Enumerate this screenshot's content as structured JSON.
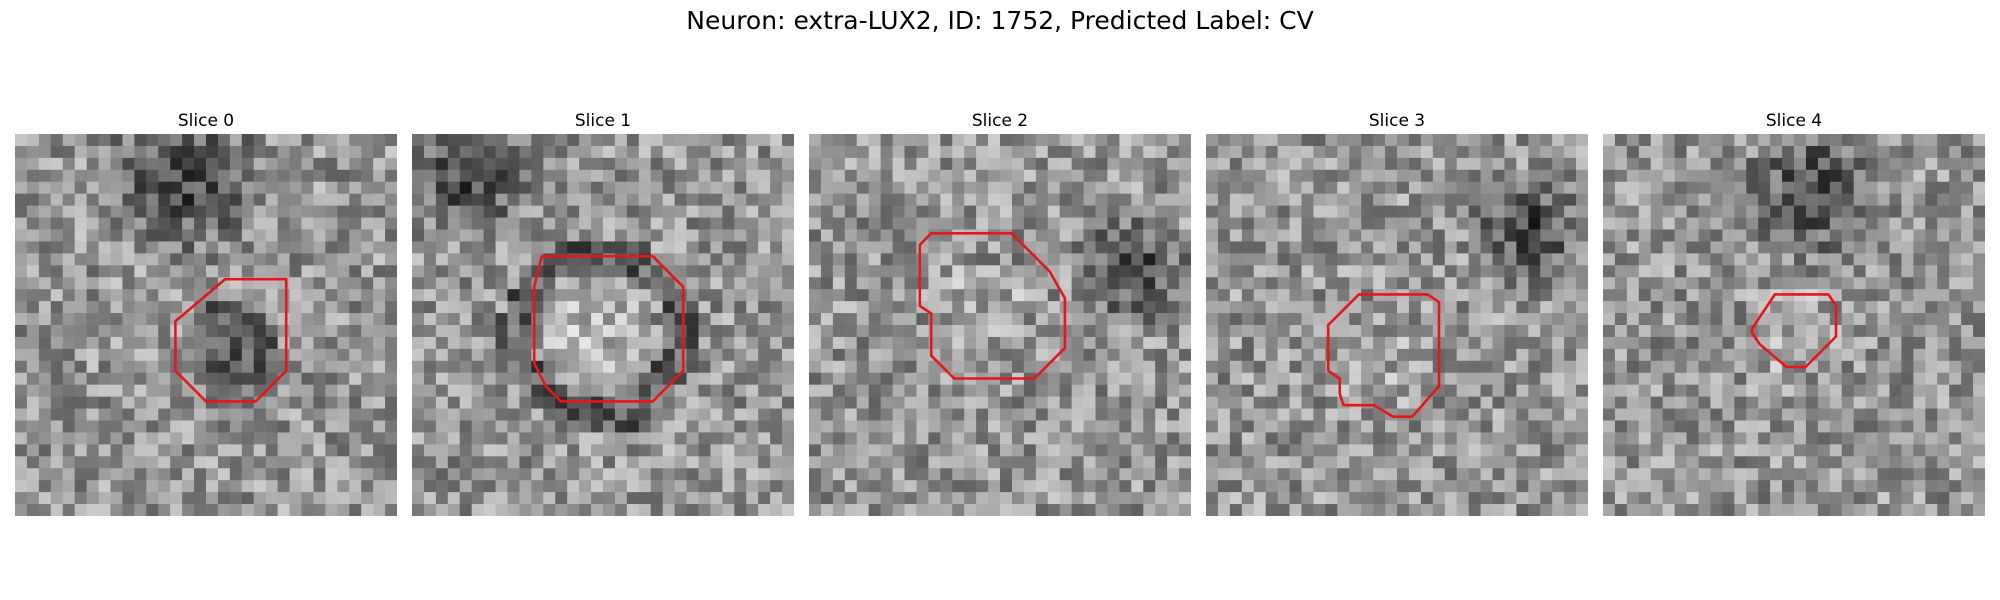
{
  "figure": {
    "title": "Neuron: extra-LUX2, ID: 1752, Predicted Label: CV"
  },
  "panels": [
    {
      "title": "Slice 0",
      "seed": 11,
      "dark_blob": [
        0.45,
        0.12,
        0.25
      ],
      "ring": false,
      "contour": [
        [
          0.55,
          0.38
        ],
        [
          0.71,
          0.38
        ],
        [
          0.71,
          0.62
        ],
        [
          0.63,
          0.7
        ],
        [
          0.5,
          0.7
        ],
        [
          0.42,
          0.62
        ],
        [
          0.42,
          0.49
        ]
      ]
    },
    {
      "title": "Slice 1",
      "seed": 23,
      "dark_blob": [
        0.15,
        0.1,
        0.22
      ],
      "ring": true,
      "contour": [
        [
          0.34,
          0.32
        ],
        [
          0.63,
          0.32
        ],
        [
          0.71,
          0.4
        ],
        [
          0.71,
          0.62
        ],
        [
          0.63,
          0.7
        ],
        [
          0.39,
          0.7
        ],
        [
          0.35,
          0.66
        ],
        [
          0.32,
          0.6
        ],
        [
          0.32,
          0.4
        ]
      ]
    },
    {
      "title": "Slice 2",
      "seed": 37,
      "dark_blob": [
        0.85,
        0.35,
        0.18
      ],
      "ring": false,
      "contour": [
        [
          0.32,
          0.26
        ],
        [
          0.53,
          0.26
        ],
        [
          0.63,
          0.36
        ],
        [
          0.67,
          0.43
        ],
        [
          0.67,
          0.56
        ],
        [
          0.59,
          0.64
        ],
        [
          0.38,
          0.64
        ],
        [
          0.32,
          0.58
        ],
        [
          0.32,
          0.47
        ],
        [
          0.29,
          0.45
        ],
        [
          0.29,
          0.29
        ]
      ]
    },
    {
      "title": "Slice 3",
      "seed": 41,
      "dark_blob": [
        0.85,
        0.25,
        0.18
      ],
      "ring": false,
      "contour": [
        [
          0.4,
          0.42
        ],
        [
          0.58,
          0.42
        ],
        [
          0.61,
          0.44
        ],
        [
          0.61,
          0.66
        ],
        [
          0.54,
          0.74
        ],
        [
          0.49,
          0.74
        ],
        [
          0.44,
          0.71
        ],
        [
          0.36,
          0.71
        ],
        [
          0.35,
          0.68
        ],
        [
          0.35,
          0.64
        ],
        [
          0.32,
          0.62
        ],
        [
          0.32,
          0.5
        ]
      ]
    },
    {
      "title": "Slice 4",
      "seed": 53,
      "dark_blob": [
        0.55,
        0.15,
        0.22
      ],
      "ring": false,
      "contour": [
        [
          0.45,
          0.42
        ],
        [
          0.59,
          0.42
        ],
        [
          0.61,
          0.45
        ],
        [
          0.61,
          0.53
        ],
        [
          0.53,
          0.61
        ],
        [
          0.48,
          0.61
        ],
        [
          0.41,
          0.55
        ],
        [
          0.39,
          0.52
        ],
        [
          0.39,
          0.51
        ]
      ]
    }
  ],
  "contour_color": "#e8151b"
}
